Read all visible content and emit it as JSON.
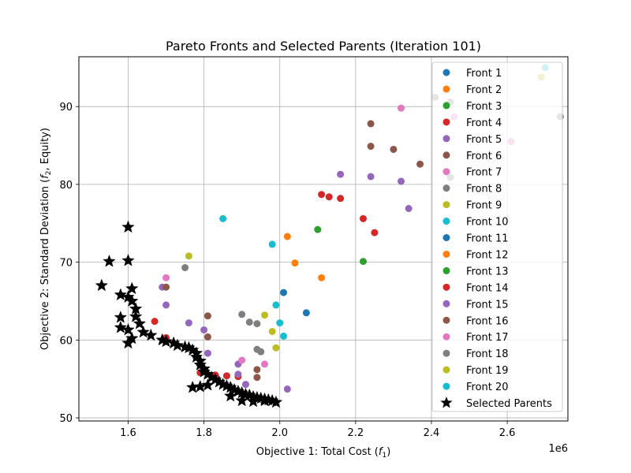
{
  "chart_data": {
    "type": "scatter",
    "title": "Pareto Fronts and Selected Parents (Iteration 101)",
    "xlabel_prefix": "Objective 1: Total Cost (",
    "xlabel_var": "f",
    "xlabel_sub": "1",
    "xlabel_suffix": ")",
    "ylabel_prefix": "Objective 2: Standard Deviation (",
    "ylabel_var": "f",
    "ylabel_sub": "2",
    "ylabel_suffix": ", Equity)",
    "x_multiplier": "1e6",
    "xlim": [
      1.47,
      2.76
    ],
    "ylim": [
      49.6,
      96.4
    ],
    "xticks": [
      1.6,
      1.8,
      2.0,
      2.2,
      2.4,
      2.6
    ],
    "xtick_labels": [
      "1.6",
      "1.8",
      "2.0",
      "2.2",
      "2.4",
      "2.6"
    ],
    "yticks": [
      50,
      60,
      70,
      80,
      90
    ],
    "ytick_labels": [
      "50",
      "60",
      "70",
      "80",
      "90"
    ],
    "grid": true,
    "legend_position": "upper right",
    "series": [
      {
        "name": "Front 1",
        "color": "#1f77b4",
        "points": []
      },
      {
        "name": "Front 2",
        "color": "#ff7f0e",
        "points": []
      },
      {
        "name": "Front 3",
        "color": "#2ca02c",
        "points": []
      },
      {
        "name": "Front 4",
        "color": "#d62728",
        "points": [
          [
            1.67,
            62.4
          ],
          [
            1.7,
            60.3
          ],
          [
            1.79,
            55.8
          ],
          [
            1.83,
            55.5
          ],
          [
            1.86,
            55.4
          ],
          [
            1.89,
            55.3
          ],
          [
            2.11,
            78.7
          ],
          [
            2.13,
            78.4
          ],
          [
            2.16,
            78.2
          ],
          [
            2.22,
            75.6
          ],
          [
            2.25,
            73.8
          ]
        ]
      },
      {
        "name": "Front 5",
        "color": "#9467bd",
        "points": [
          [
            1.69,
            66.8
          ],
          [
            1.7,
            64.5
          ],
          [
            1.76,
            62.2
          ],
          [
            1.8,
            61.3
          ],
          [
            1.81,
            58.3
          ],
          [
            1.89,
            56.9
          ],
          [
            1.89,
            55.6
          ],
          [
            1.91,
            54.3
          ],
          [
            2.02,
            53.7
          ],
          [
            2.16,
            81.3
          ],
          [
            2.24,
            81.0
          ],
          [
            2.32,
            80.4
          ],
          [
            2.34,
            76.9
          ]
        ]
      },
      {
        "name": "Front 6",
        "color": "#8c564b",
        "points": [
          [
            1.7,
            66.8
          ],
          [
            1.81,
            63.1
          ],
          [
            1.81,
            60.4
          ],
          [
            1.94,
            56.2
          ],
          [
            1.94,
            55.2
          ],
          [
            2.24,
            87.8
          ],
          [
            2.24,
            84.9
          ],
          [
            2.3,
            84.5
          ],
          [
            2.37,
            82.6
          ]
        ]
      },
      {
        "name": "Front 7",
        "color": "#e377c2",
        "points": [
          [
            1.7,
            68.0
          ],
          [
            1.9,
            57.4
          ],
          [
            1.96,
            56.9
          ],
          [
            2.32,
            89.8
          ],
          [
            2.46,
            88.7
          ],
          [
            2.61,
            85.5
          ]
        ]
      },
      {
        "name": "Front 8",
        "color": "#7f7f7f",
        "points": [
          [
            1.75,
            69.3
          ],
          [
            1.9,
            63.3
          ],
          [
            1.92,
            62.3
          ],
          [
            1.94,
            62.1
          ],
          [
            1.94,
            58.8
          ],
          [
            1.95,
            58.5
          ],
          [
            2.41,
            91.2
          ],
          [
            2.45,
            90.6
          ],
          [
            2.45,
            80.9
          ],
          [
            2.74,
            88.7
          ]
        ]
      },
      {
        "name": "Front 9",
        "color": "#bcbd22",
        "points": [
          [
            1.76,
            70.8
          ],
          [
            1.96,
            63.2
          ],
          [
            1.98,
            61.1
          ],
          [
            1.99,
            59.0
          ],
          [
            2.69,
            93.8
          ]
        ]
      },
      {
        "name": "Front 10",
        "color": "#17becf",
        "points": [
          [
            1.85,
            75.6
          ],
          [
            1.98,
            72.3
          ],
          [
            1.99,
            64.5
          ],
          [
            2.0,
            62.2
          ],
          [
            2.01,
            60.5
          ],
          [
            2.7,
            95.0
          ]
        ]
      },
      {
        "name": "Front 11",
        "color": "#1f77b4",
        "points": [
          [
            2.01,
            66.1
          ],
          [
            2.07,
            63.5
          ]
        ]
      },
      {
        "name": "Front 12",
        "color": "#ff7f0e",
        "points": [
          [
            2.02,
            73.3
          ],
          [
            2.04,
            69.9
          ],
          [
            2.11,
            68.0
          ]
        ]
      },
      {
        "name": "Front 13",
        "color": "#2ca02c",
        "points": [
          [
            2.1,
            74.2
          ],
          [
            2.22,
            70.1
          ]
        ]
      },
      {
        "name": "Front 14",
        "color": "#d62728",
        "points": []
      },
      {
        "name": "Front 15",
        "color": "#9467bd",
        "points": []
      },
      {
        "name": "Front 16",
        "color": "#8c564b",
        "points": []
      },
      {
        "name": "Front 17",
        "color": "#e377c2",
        "points": []
      },
      {
        "name": "Front 18",
        "color": "#7f7f7f",
        "points": []
      },
      {
        "name": "Front 19",
        "color": "#bcbd22",
        "points": []
      },
      {
        "name": "Front 20",
        "color": "#17becf",
        "points": []
      }
    ],
    "selected_parents": {
      "name": "Selected Parents",
      "color": "#000000",
      "marker": "star",
      "points": [
        [
          1.6,
          74.5
        ],
        [
          1.55,
          70.1
        ],
        [
          1.6,
          70.2
        ],
        [
          1.53,
          67.0
        ],
        [
          1.58,
          65.8
        ],
        [
          1.6,
          65.5
        ],
        [
          1.61,
          66.6
        ],
        [
          1.61,
          65.0
        ],
        [
          1.62,
          64.0
        ],
        [
          1.62,
          63.0
        ],
        [
          1.63,
          62.1
        ],
        [
          1.58,
          62.9
        ],
        [
          1.58,
          61.6
        ],
        [
          1.6,
          61.3
        ],
        [
          1.61,
          60.2
        ],
        [
          1.6,
          59.6
        ],
        [
          1.64,
          61.0
        ],
        [
          1.66,
          60.6
        ],
        [
          1.69,
          60.0
        ],
        [
          1.7,
          59.8
        ],
        [
          1.72,
          59.6
        ],
        [
          1.73,
          59.3
        ],
        [
          1.75,
          59.1
        ],
        [
          1.76,
          59.0
        ],
        [
          1.77,
          58.7
        ],
        [
          1.78,
          58.3
        ],
        [
          1.78,
          57.8
        ],
        [
          1.79,
          57.3
        ],
        [
          1.79,
          56.8
        ],
        [
          1.8,
          56.3
        ],
        [
          1.8,
          55.9
        ],
        [
          1.81,
          55.6
        ],
        [
          1.82,
          55.2
        ],
        [
          1.83,
          54.9
        ],
        [
          1.84,
          54.6
        ],
        [
          1.85,
          54.3
        ],
        [
          1.86,
          54.1
        ],
        [
          1.87,
          53.9
        ],
        [
          1.88,
          53.6
        ],
        [
          1.89,
          53.4
        ],
        [
          1.9,
          53.2
        ],
        [
          1.91,
          53.0
        ],
        [
          1.92,
          52.9
        ],
        [
          1.93,
          52.7
        ],
        [
          1.94,
          52.6
        ],
        [
          1.95,
          52.5
        ],
        [
          1.96,
          52.4
        ],
        [
          1.97,
          52.3
        ],
        [
          1.98,
          52.2
        ],
        [
          1.99,
          52.0
        ],
        [
          1.77,
          53.9
        ],
        [
          1.79,
          54.0
        ],
        [
          1.81,
          54.2
        ],
        [
          1.87,
          52.8
        ],
        [
          1.9,
          52.2
        ],
        [
          1.93,
          52.1
        ],
        [
          1.96,
          52.2
        ]
      ]
    }
  }
}
